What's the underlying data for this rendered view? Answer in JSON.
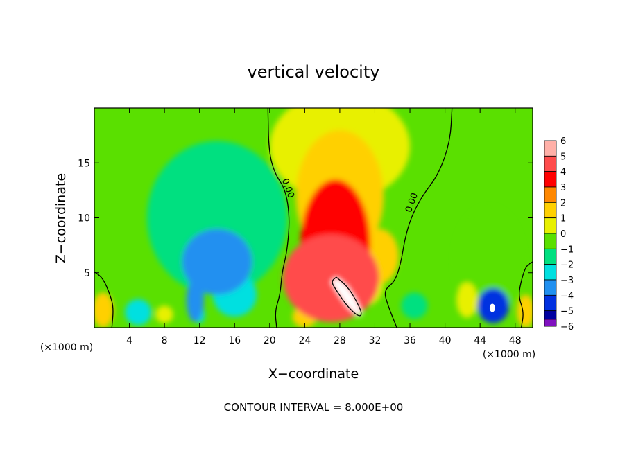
{
  "chart_data": {
    "type": "heatmap",
    "title": "vertical velocity",
    "xlabel": "X−coordinate",
    "ylabel": "Z−coordinate",
    "x_unit_left": "(×1000 m)",
    "x_unit_right": "(×1000 m)",
    "xlim": [
      0,
      50
    ],
    "ylim": [
      0,
      20
    ],
    "x_ticks": [
      4,
      8,
      12,
      16,
      20,
      24,
      28,
      32,
      36,
      40,
      44,
      48
    ],
    "x_tick_labels": [
      "4",
      "8",
      "12",
      "16",
      "20",
      "24",
      "28",
      "32",
      "36",
      "40",
      "44",
      "48"
    ],
    "y_ticks": [
      5,
      10,
      15
    ],
    "y_tick_labels": [
      "5",
      "10",
      "15"
    ],
    "colorbar": {
      "levels": [
        6,
        5,
        4,
        3,
        2,
        1,
        0,
        -1,
        -2,
        -3,
        -4,
        -5,
        -6
      ],
      "labels": [
        "6",
        "5",
        "4",
        "3",
        "2",
        "1",
        "0",
        "−1",
        "−2",
        "−3",
        "−4",
        "−5",
        "−6"
      ],
      "colors": [
        "#ffb0a8",
        "#ff4c4c",
        "#ff0000",
        "#ff8800",
        "#ffd000",
        "#e8f000",
        "#5ae000",
        "#00e080",
        "#00e0e0",
        "#2090f0",
        "#0030e0",
        "#0000a0",
        "#8010c0"
      ]
    },
    "contour_labels": [
      {
        "text": "0.00",
        "x": 21.8,
        "z": 12.6
      },
      {
        "text": "0.00",
        "x": 36.5,
        "z": 11.3
      }
    ],
    "zero_contours": [
      {
        "name": "left-boundary",
        "points": [
          [
            19.8,
            20
          ],
          [
            19.9,
            16
          ],
          [
            20.6,
            14
          ],
          [
            21.8,
            12.6
          ],
          [
            22.3,
            10
          ],
          [
            22.0,
            7
          ],
          [
            21.4,
            5
          ],
          [
            21.2,
            3
          ],
          [
            20.6,
            1.5
          ],
          [
            20.8,
            0
          ]
        ]
      },
      {
        "name": "right-boundary",
        "points": [
          [
            40.8,
            20
          ],
          [
            40.6,
            17
          ],
          [
            39.3,
            14
          ],
          [
            37.4,
            12
          ],
          [
            36.1,
            10
          ],
          [
            35.4,
            8
          ],
          [
            35.0,
            6
          ],
          [
            34.3,
            4.2
          ],
          [
            33.0,
            3.4
          ],
          [
            33.5,
            2
          ],
          [
            34.5,
            0
          ]
        ]
      },
      {
        "name": "core",
        "points": [
          [
            27.6,
            4.6
          ],
          [
            28.8,
            3.8
          ],
          [
            29.8,
            2.6
          ],
          [
            30.6,
            1.2
          ],
          [
            30.1,
            1.0
          ],
          [
            28.8,
            2.0
          ],
          [
            27.6,
            3.4
          ],
          [
            27.0,
            4.2
          ],
          [
            27.6,
            4.6
          ]
        ]
      },
      {
        "name": "left-low",
        "points": [
          [
            0,
            5.1
          ],
          [
            1.0,
            4.5
          ],
          [
            1.8,
            3.0
          ],
          [
            2.2,
            1.8
          ],
          [
            2.0,
            0
          ]
        ]
      },
      {
        "name": "right-low",
        "points": [
          [
            50,
            6.0
          ],
          [
            49.2,
            5.6
          ],
          [
            48.6,
            4.0
          ],
          [
            48.4,
            2.8
          ],
          [
            49.0,
            1.4
          ],
          [
            48.7,
            0
          ]
        ]
      }
    ],
    "blobs": [
      {
        "x": 27.0,
        "z": 4.5,
        "rx": 5.5,
        "rz": 4.0,
        "value": 4.5
      },
      {
        "x": 27.5,
        "z": 7.5,
        "rx": 4.0,
        "rz": 6.0,
        "value": 3.5
      },
      {
        "x": 28.0,
        "z": 12.0,
        "rx": 5.0,
        "rz": 6.0,
        "value": 1.6
      },
      {
        "x": 28.0,
        "z": 16.5,
        "rx": 8.0,
        "rz": 5.0,
        "value": 0.6
      },
      {
        "x": 27.0,
        "z": 3.2,
        "rx": 2.0,
        "rz": 1.8,
        "value": 3.0
      },
      {
        "x": 32.5,
        "z": 6.5,
        "rx": 2.2,
        "rz": 2.5,
        "value": 2.2
      },
      {
        "x": 31.0,
        "z": 4.0,
        "rx": 2.0,
        "rz": 2.0,
        "value": 1.4
      },
      {
        "x": 14.0,
        "z": 6.0,
        "rx": 4.0,
        "rz": 3.0,
        "value": -2.8
      },
      {
        "x": 11.5,
        "z": 2.5,
        "rx": 1.0,
        "rz": 2.0,
        "value": -3.5
      },
      {
        "x": 12.0,
        "z": 1.2,
        "rx": 0.6,
        "rz": 0.8,
        "value": -2.0
      },
      {
        "x": 16.0,
        "z": 3.0,
        "rx": 2.5,
        "rz": 2.0,
        "value": -1.8
      },
      {
        "x": 14.0,
        "z": 10.0,
        "rx": 8.0,
        "rz": 7.0,
        "value": -0.9
      },
      {
        "x": 5.0,
        "z": 1.4,
        "rx": 1.5,
        "rz": 1.2,
        "value": -2.5
      },
      {
        "x": 1.0,
        "z": 1.6,
        "rx": 1.2,
        "rz": 1.6,
        "value": 1.8
      },
      {
        "x": 8.0,
        "z": 1.2,
        "rx": 1.0,
        "rz": 0.8,
        "value": 1.0
      },
      {
        "x": 36.5,
        "z": 2.0,
        "rx": 1.5,
        "rz": 1.2,
        "value": -1.5
      },
      {
        "x": 45.5,
        "z": 2.0,
        "rx": 1.8,
        "rz": 1.6,
        "value": -3.6
      },
      {
        "x": 49.2,
        "z": 1.5,
        "rx": 1.0,
        "rz": 1.5,
        "value": 1.6
      },
      {
        "x": 42.5,
        "z": 2.5,
        "rx": 1.2,
        "rz": 1.6,
        "value": 1.0
      },
      {
        "x": 45.0,
        "z": 6.0,
        "rx": 4.0,
        "rz": 5.0,
        "value": -0.5
      },
      {
        "x": 24.0,
        "z": 1.0,
        "rx": 1.4,
        "rz": 1.0,
        "value": 1.5
      }
    ],
    "min_marker": {
      "x": 45.4,
      "z": 1.8
    }
  },
  "footer": {
    "contour_interval": "CONTOUR INTERVAL = 8.000E+00"
  }
}
